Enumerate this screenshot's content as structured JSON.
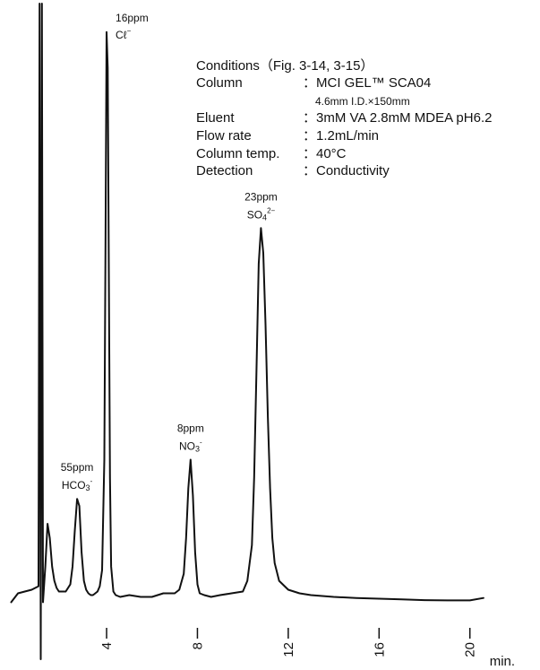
{
  "chart_data": {
    "type": "line",
    "title": "",
    "xlabel": "min.",
    "ylabel": "",
    "xlim": [
      -0.3,
      20.8
    ],
    "ylim": [
      -1.6,
      16.8
    ],
    "grid": false,
    "x_ticks": [
      4,
      8,
      12,
      16,
      20
    ],
    "x_tick_labels": [
      "4",
      "8",
      "12",
      "16",
      "20"
    ],
    "x_unit_label": "min.",
    "series": [
      {
        "x": [
          -0.2,
          0.1,
          0.4,
          0.7,
          1.0,
          1.05,
          1.1,
          1.15,
          1.2,
          1.3,
          1.4,
          1.5,
          1.6,
          1.7,
          1.8,
          1.9,
          2.0,
          2.2,
          2.4,
          2.5,
          2.6,
          2.7,
          2.8,
          2.9,
          3.0,
          3.1,
          3.2,
          3.3,
          3.4,
          3.5,
          3.6,
          3.7,
          3.8,
          3.9,
          3.95,
          4.0,
          4.05,
          4.1,
          4.15,
          4.2,
          4.3,
          4.4,
          4.6,
          5.0,
          5.5,
          6.0,
          6.5,
          7.0,
          7.2,
          7.4,
          7.5,
          7.6,
          7.7,
          7.8,
          7.9,
          8.0,
          8.1,
          8.3,
          8.6,
          9.0,
          9.5,
          10.0,
          10.2,
          10.4,
          10.5,
          10.6,
          10.7,
          10.8,
          10.9,
          11.0,
          11.1,
          11.2,
          11.3,
          11.4,
          11.6,
          12.0,
          12.5,
          13.0,
          14.0,
          15.0,
          16.0,
          17.0,
          18.0,
          19.0,
          20.0,
          20.6
        ],
        "y": [
          0.0,
          0.25,
          0.3,
          0.35,
          0.45,
          16.8,
          -1.6,
          16.8,
          0.0,
          1.0,
          2.2,
          1.8,
          1.0,
          0.6,
          0.4,
          0.3,
          0.3,
          0.3,
          0.5,
          1.0,
          2.0,
          2.9,
          2.7,
          1.4,
          0.6,
          0.35,
          0.25,
          0.2,
          0.2,
          0.25,
          0.3,
          0.45,
          0.9,
          4.0,
          10.0,
          16.0,
          15.0,
          9.0,
          3.5,
          1.0,
          0.3,
          0.2,
          0.15,
          0.2,
          0.15,
          0.15,
          0.25,
          0.25,
          0.35,
          0.8,
          1.8,
          3.2,
          4.0,
          3.0,
          1.4,
          0.5,
          0.25,
          0.2,
          0.15,
          0.2,
          0.25,
          0.3,
          0.6,
          1.6,
          3.5,
          6.5,
          9.5,
          10.5,
          9.8,
          7.8,
          5.2,
          3.2,
          1.8,
          1.1,
          0.6,
          0.35,
          0.25,
          0.2,
          0.15,
          0.12,
          0.1,
          0.08,
          0.06,
          0.05,
          0.05,
          0.12
        ]
      }
    ],
    "peaks": [
      {
        "name": "HCO3-",
        "conc": "55ppm",
        "formula": "HCO3",
        "charge": "-",
        "rt": 2.7
      },
      {
        "name": "Cl-",
        "conc": "16ppm",
        "formula": "Cℓ",
        "charge": "−",
        "rt": 4.0
      },
      {
        "name": "NO3-",
        "conc": "8ppm",
        "formula": "NO3",
        "charge": "-",
        "rt": 7.7
      },
      {
        "name": "SO42-",
        "conc": "23ppm",
        "formula": "SO4",
        "charge": "2−",
        "rt": 10.8
      }
    ]
  },
  "conditions": {
    "title": "Conditions（Fig. 3-14, 3-15）",
    "rows": [
      {
        "label": "Column",
        "value": "：MCI GEL™ SCA04"
      },
      {
        "label": "",
        "value": "4.6mm I.D.×150mm"
      },
      {
        "label": "Eluent",
        "value": "：3mM VA 2.8mM MDEA pH6.2"
      },
      {
        "label": "Flow rate",
        "value": "：1.2mL/min"
      },
      {
        "label": "Column temp.",
        "value": "：40°C"
      },
      {
        "label": "Detection",
        "value": "：Conductivity"
      }
    ]
  }
}
